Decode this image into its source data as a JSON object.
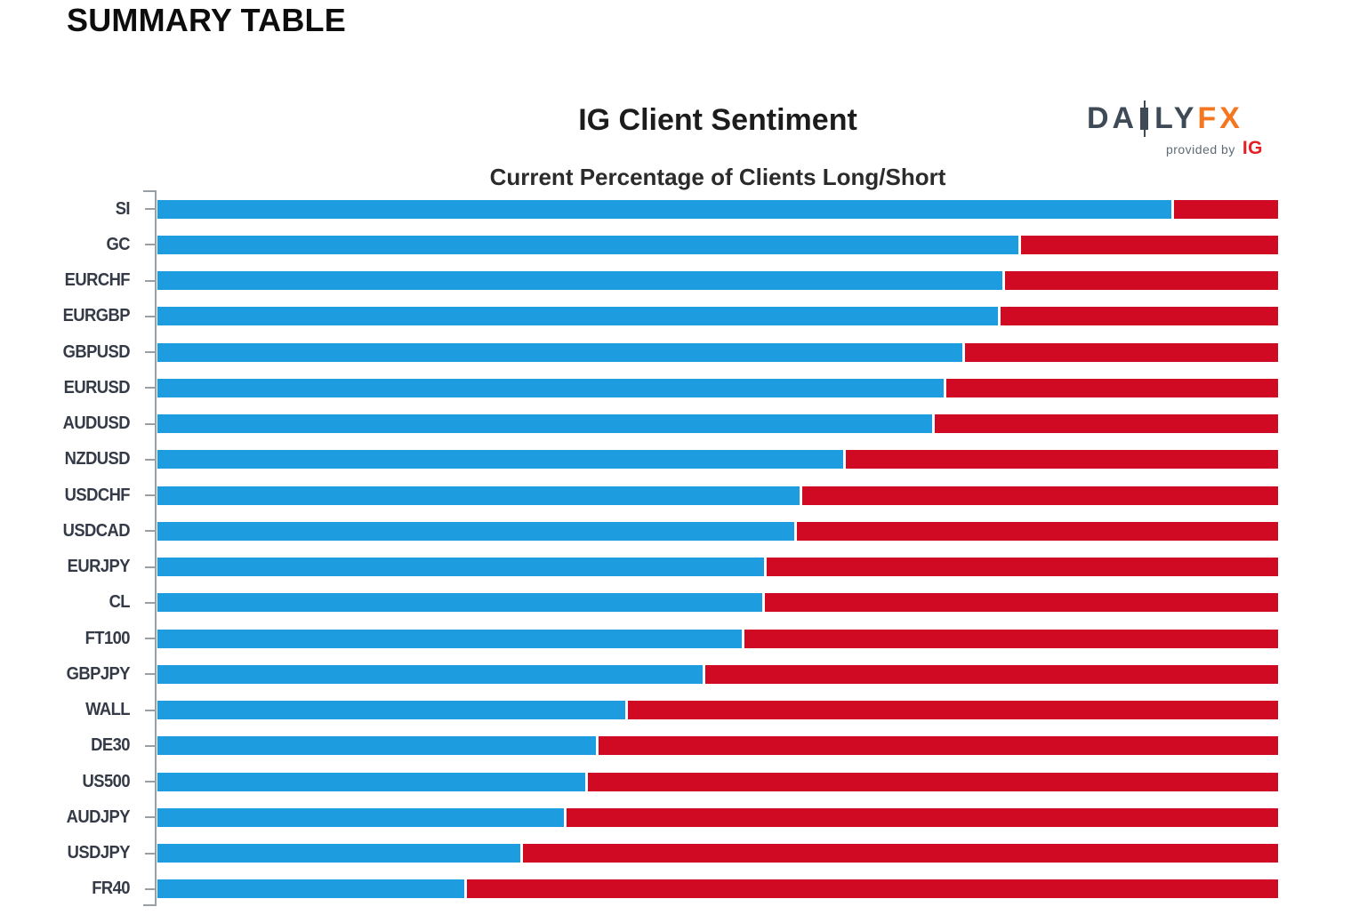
{
  "page": {
    "heading": "SUMMARY TABLE"
  },
  "logo": {
    "text_da": "DA",
    "text_ly": "LY",
    "text_fx": "FX",
    "provided_by": "provided by",
    "ig": "IG"
  },
  "colors": {
    "long_blue": "#1E9CE0",
    "short_red": "#D10A24",
    "axis_gray": "#98A0A6",
    "label_dark": "#343A46",
    "logo_slate": "#3E4A55",
    "logo_orange": "#F5761F",
    "ig_red": "#E12026"
  },
  "chart_data": {
    "type": "bar",
    "orientation": "horizontal",
    "stacked": true,
    "title": "IG Client Sentiment",
    "subtitle": "Current Percentage of Clients Long/Short",
    "xlabel": "",
    "ylabel": "",
    "xlim": [
      0,
      100
    ],
    "grid": false,
    "legend": "none",
    "categories": [
      "SI",
      "GC",
      "EURCHF",
      "EURGBP",
      "GBPUSD",
      "EURUSD",
      "AUDUSD",
      "NZDUSD",
      "USDCHF",
      "USDCAD",
      "EURJPY",
      "CL",
      "FT100",
      "GBPJPY",
      "WALL",
      "DE30",
      "US500",
      "AUDJPY",
      "USDJPY",
      "FR40"
    ],
    "series": [
      {
        "name": "Percent Long",
        "color": "#1E9CE0",
        "values": [
          90.7,
          77.1,
          75.6,
          75.2,
          72.1,
          70.4,
          69.4,
          61.4,
          57.5,
          57.1,
          54.4,
          54.2,
          52.4,
          48.9,
          42.0,
          39.4,
          38.4,
          36.5,
          32.6,
          27.6
        ]
      },
      {
        "name": "Percent Short",
        "color": "#D10A24",
        "values": [
          9.3,
          22.9,
          24.4,
          24.8,
          27.9,
          29.6,
          30.6,
          38.6,
          42.5,
          42.9,
          45.6,
          45.8,
          47.6,
          51.1,
          58.0,
          60.6,
          61.6,
          63.5,
          67.4,
          72.4
        ]
      }
    ]
  }
}
